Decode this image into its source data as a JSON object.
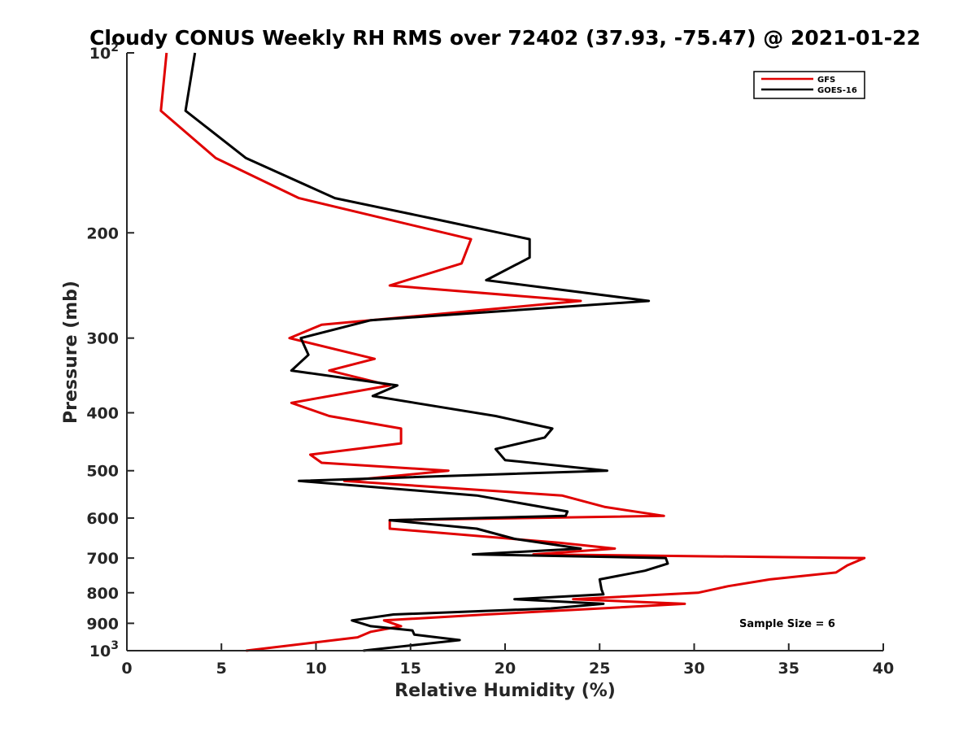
{
  "chart_data": {
    "type": "line",
    "title": "Cloudy CONUS Weekly RH RMS over 72402 (37.93, -75.47) @ 2021-01-22",
    "xlabel": "Relative Humidity (%)",
    "ylabel": "Pressure (mb)",
    "xlim": [
      0,
      40
    ],
    "ylim": [
      100,
      1000
    ],
    "y_scale": "log",
    "y_reversed": true,
    "grid": false,
    "legend_position": "top-right",
    "x_ticks": [
      "0",
      "5",
      "10",
      "15",
      "20",
      "25",
      "30",
      "35",
      "40"
    ],
    "y_ticks": [
      {
        "value": 100,
        "label": "10",
        "sup": "2"
      },
      {
        "value": 200,
        "label": "200",
        "sup": ""
      },
      {
        "value": 300,
        "label": "300",
        "sup": ""
      },
      {
        "value": 400,
        "label": "400",
        "sup": ""
      },
      {
        "value": 500,
        "label": "500",
        "sup": ""
      },
      {
        "value": 600,
        "label": "600",
        "sup": ""
      },
      {
        "value": 700,
        "label": "700",
        "sup": ""
      },
      {
        "value": 800,
        "label": "800",
        "sup": ""
      },
      {
        "value": 900,
        "label": "900",
        "sup": ""
      },
      {
        "value": 1000,
        "label": "10",
        "sup": "3"
      }
    ],
    "series": [
      {
        "name": "GFS",
        "color": "#e00000",
        "points": [
          [
            2.1,
            100
          ],
          [
            1.8,
            125
          ],
          [
            4.7,
            150
          ],
          [
            9.1,
            175
          ],
          [
            18.2,
            205
          ],
          [
            17.7,
            225
          ],
          [
            13.9,
            245
          ],
          [
            24.0,
            260
          ],
          [
            10.3,
            285
          ],
          [
            8.6,
            300
          ],
          [
            13.1,
            325
          ],
          [
            10.7,
            340
          ],
          [
            13.9,
            360
          ],
          [
            8.7,
            385
          ],
          [
            10.7,
            405
          ],
          [
            14.5,
            425
          ],
          [
            14.5,
            450
          ],
          [
            9.7,
            470
          ],
          [
            10.3,
            485
          ],
          [
            17.0,
            500
          ],
          [
            11.5,
            520
          ],
          [
            23.0,
            550
          ],
          [
            25.3,
            575
          ],
          [
            28.4,
            595
          ],
          [
            13.9,
            605
          ],
          [
            13.9,
            625
          ],
          [
            22.9,
            660
          ],
          [
            25.8,
            675
          ],
          [
            21.5,
            690
          ],
          [
            39.0,
            700
          ],
          [
            38.1,
            720
          ],
          [
            37.5,
            740
          ],
          [
            34.0,
            760
          ],
          [
            31.8,
            780
          ],
          [
            30.2,
            800
          ],
          [
            23.6,
            820
          ],
          [
            29.5,
            835
          ],
          [
            25.0,
            850
          ],
          [
            19.0,
            870
          ],
          [
            13.6,
            890
          ],
          [
            14.5,
            910
          ],
          [
            12.9,
            930
          ],
          [
            12.2,
            950
          ],
          [
            6.3,
            1000
          ]
        ]
      },
      {
        "name": "GOES-16",
        "color": "#000000",
        "points": [
          [
            3.6,
            100
          ],
          [
            3.1,
            125
          ],
          [
            6.3,
            150
          ],
          [
            11.0,
            175
          ],
          [
            16.4,
            190
          ],
          [
            21.3,
            205
          ],
          [
            21.3,
            220
          ],
          [
            19.0,
            240
          ],
          [
            27.6,
            260
          ],
          [
            12.9,
            280
          ],
          [
            9.2,
            300
          ],
          [
            9.6,
            320
          ],
          [
            8.7,
            340
          ],
          [
            14.3,
            360
          ],
          [
            13.0,
            375
          ],
          [
            19.5,
            405
          ],
          [
            22.5,
            425
          ],
          [
            22.1,
            440
          ],
          [
            19.5,
            460
          ],
          [
            20.0,
            480
          ],
          [
            25.4,
            500
          ],
          [
            9.1,
            520
          ],
          [
            18.5,
            550
          ],
          [
            23.3,
            585
          ],
          [
            23.2,
            595
          ],
          [
            13.9,
            605
          ],
          [
            18.5,
            625
          ],
          [
            20.5,
            650
          ],
          [
            24.0,
            675
          ],
          [
            18.3,
            690
          ],
          [
            28.5,
            700
          ],
          [
            28.6,
            715
          ],
          [
            27.4,
            735
          ],
          [
            25.0,
            760
          ],
          [
            25.1,
            790
          ],
          [
            25.2,
            805
          ],
          [
            20.5,
            820
          ],
          [
            25.2,
            835
          ],
          [
            22.4,
            850
          ],
          [
            14.1,
            870
          ],
          [
            11.9,
            890
          ],
          [
            12.9,
            910
          ],
          [
            15.1,
            925
          ],
          [
            15.2,
            940
          ],
          [
            17.6,
            960
          ],
          [
            12.5,
            1000
          ]
        ]
      }
    ],
    "annotation": "Sample Size = 6"
  }
}
